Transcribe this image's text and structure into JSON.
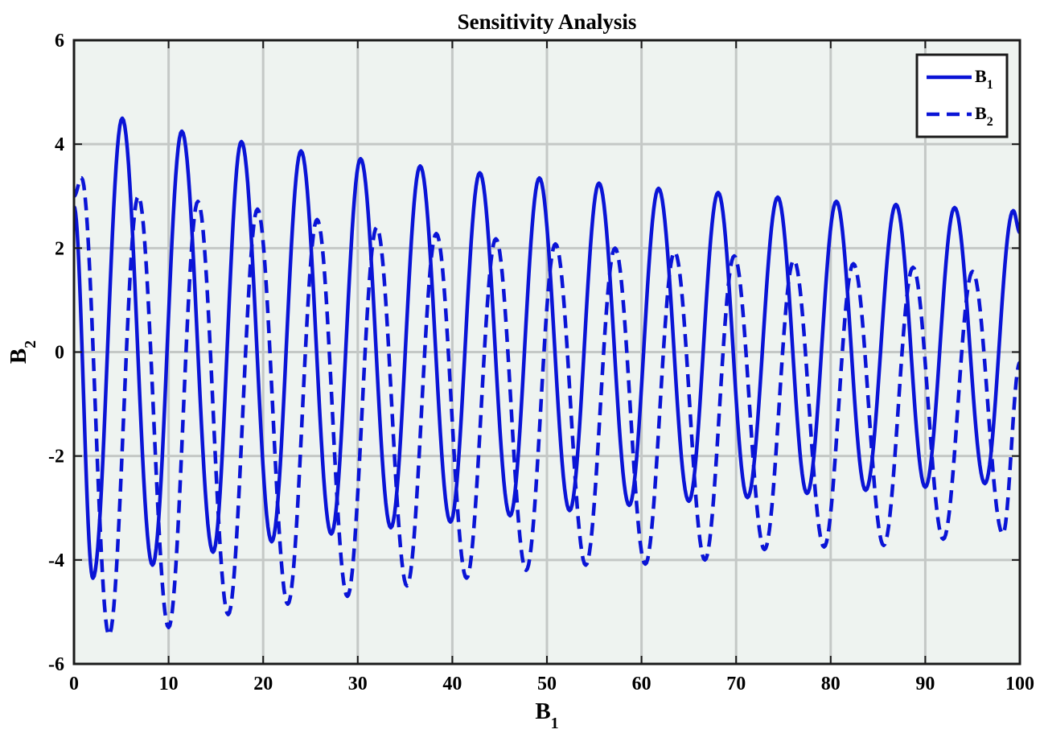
{
  "chart_data": {
    "type": "line",
    "title": "Sensitivity Analysis",
    "xlabel": {
      "base": "B",
      "sub": "1"
    },
    "ylabel": {
      "base": "B",
      "sub": "2"
    },
    "xlim": [
      0,
      100
    ],
    "ylim": [
      -6,
      6
    ],
    "xticks": [
      0,
      10,
      20,
      30,
      40,
      50,
      60,
      70,
      80,
      90,
      100
    ],
    "yticks": [
      6,
      4,
      2,
      0,
      -2,
      -4,
      -6
    ],
    "xtick_labels": [
      "0",
      "10",
      "20",
      "30",
      "40",
      "50",
      "60",
      "70",
      "80",
      "90",
      "100"
    ],
    "ytick_labels": [
      "6",
      "4",
      "2",
      "0",
      "-2",
      "-4",
      "-6"
    ],
    "grid": true,
    "plot_background": "#eef3f0",
    "legend": {
      "placement": "top-right",
      "entries": [
        {
          "base": "B",
          "sub": "1",
          "style": "solid"
        },
        {
          "base": "B",
          "sub": "2",
          "style": "dashed"
        }
      ]
    },
    "series": [
      {
        "style": "solid",
        "color": "#0a14d6",
        "x": [
          0,
          2.0,
          5.1,
          8.3,
          11.4,
          14.7,
          17.7,
          20.9,
          24.0,
          27.2,
          30.3,
          33.5,
          36.6,
          39.8,
          42.9,
          46.1,
          49.2,
          52.4,
          55.5,
          58.7,
          61.8,
          65.0,
          68.1,
          71.2,
          74.4,
          77.5,
          80.6,
          83.7,
          86.9,
          90.0,
          93.1,
          96.3,
          99.3,
          100
        ],
        "y": [
          2.8,
          -4.35,
          4.5,
          -4.1,
          4.25,
          -3.85,
          4.05,
          -3.65,
          3.87,
          -3.5,
          3.72,
          -3.38,
          3.58,
          -3.27,
          3.45,
          -3.15,
          3.35,
          -3.05,
          3.25,
          -2.95,
          3.15,
          -2.87,
          3.07,
          -2.8,
          2.98,
          -2.72,
          2.9,
          -2.66,
          2.84,
          -2.6,
          2.78,
          -2.53,
          2.72,
          2.3
        ]
      },
      {
        "style": "dashed",
        "color": "#0a14d6",
        "x": [
          0,
          0.8,
          3.7,
          6.8,
          10.0,
          13.1,
          16.3,
          19.4,
          22.6,
          25.7,
          28.9,
          32.0,
          35.2,
          38.3,
          41.5,
          44.6,
          47.8,
          50.9,
          54.1,
          57.2,
          60.4,
          63.5,
          66.7,
          69.8,
          73.0,
          76.1,
          79.3,
          82.4,
          85.6,
          88.7,
          91.9,
          95.0,
          98.2,
          100
        ],
        "y": [
          3.0,
          3.35,
          -5.45,
          3.0,
          -5.3,
          2.9,
          -5.05,
          2.75,
          -4.85,
          2.55,
          -4.7,
          2.4,
          -4.5,
          2.28,
          -4.35,
          2.18,
          -4.2,
          2.08,
          -4.1,
          2.0,
          -4.08,
          1.93,
          -4.0,
          1.85,
          -3.8,
          1.77,
          -3.75,
          1.7,
          -3.72,
          1.63,
          -3.6,
          1.55,
          -3.5,
          -0.2
        ]
      }
    ]
  }
}
